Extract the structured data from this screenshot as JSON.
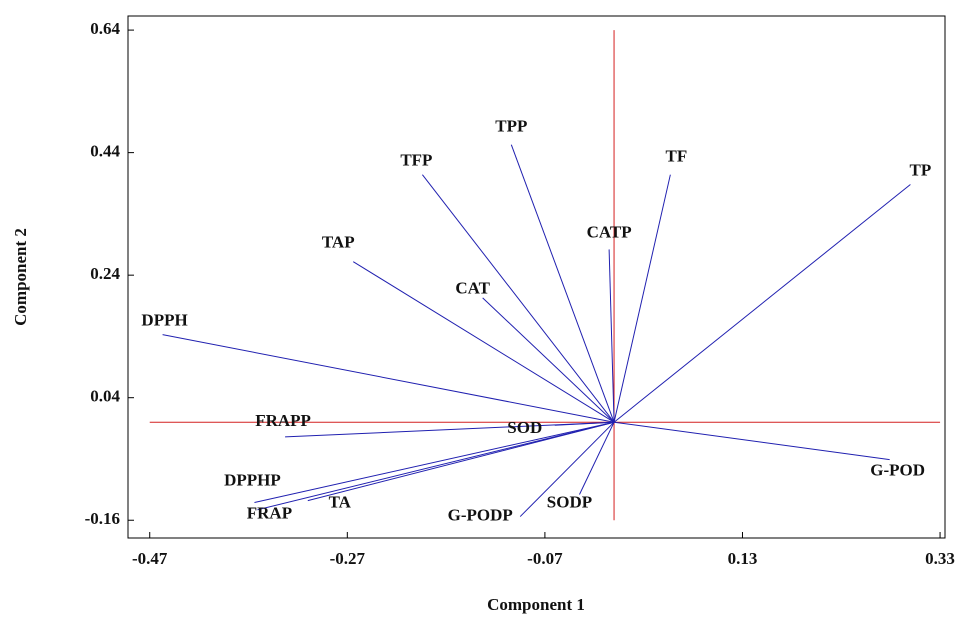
{
  "chart_data": {
    "type": "biplot",
    "xlabel": "Component 1",
    "ylabel": "Component 2",
    "xlim": [
      -0.492,
      0.335
    ],
    "ylim": [
      -0.189,
      0.663
    ],
    "xticks": [
      -0.47,
      -0.27,
      -0.07,
      0.13,
      0.33
    ],
    "yticks": [
      -0.16,
      0.04,
      0.24,
      0.44,
      0.64
    ],
    "color": "#2020b0",
    "reference_color": "#d42020",
    "points": [
      {
        "label": "TP",
        "x": 0.3,
        "y": 0.388
      },
      {
        "label": "G-POD",
        "x": 0.279,
        "y": -0.061
      },
      {
        "label": "TF",
        "x": 0.057,
        "y": 0.404
      },
      {
        "label": "CATP",
        "x": -0.005,
        "y": 0.282
      },
      {
        "label": "TPP",
        "x": -0.104,
        "y": 0.453
      },
      {
        "label": "TFP",
        "x": -0.194,
        "y": 0.404
      },
      {
        "label": "TAP",
        "x": -0.264,
        "y": 0.262
      },
      {
        "label": "CAT",
        "x": -0.133,
        "y": 0.203
      },
      {
        "label": "DPPH",
        "x": -0.457,
        "y": 0.143
      },
      {
        "label": "FRAPP",
        "x": -0.333,
        "y": -0.024
      },
      {
        "label": "SOD",
        "x": -0.06,
        "y": -0.005
      },
      {
        "label": "DPPHP",
        "x": -0.364,
        "y": -0.131
      },
      {
        "label": "FRAP",
        "x": -0.361,
        "y": -0.143
      },
      {
        "label": "TA",
        "x": -0.31,
        "y": -0.128
      },
      {
        "label": "G-PODP",
        "x": -0.095,
        "y": -0.154
      },
      {
        "label": "SODP",
        "x": -0.035,
        "y": -0.118
      }
    ]
  }
}
